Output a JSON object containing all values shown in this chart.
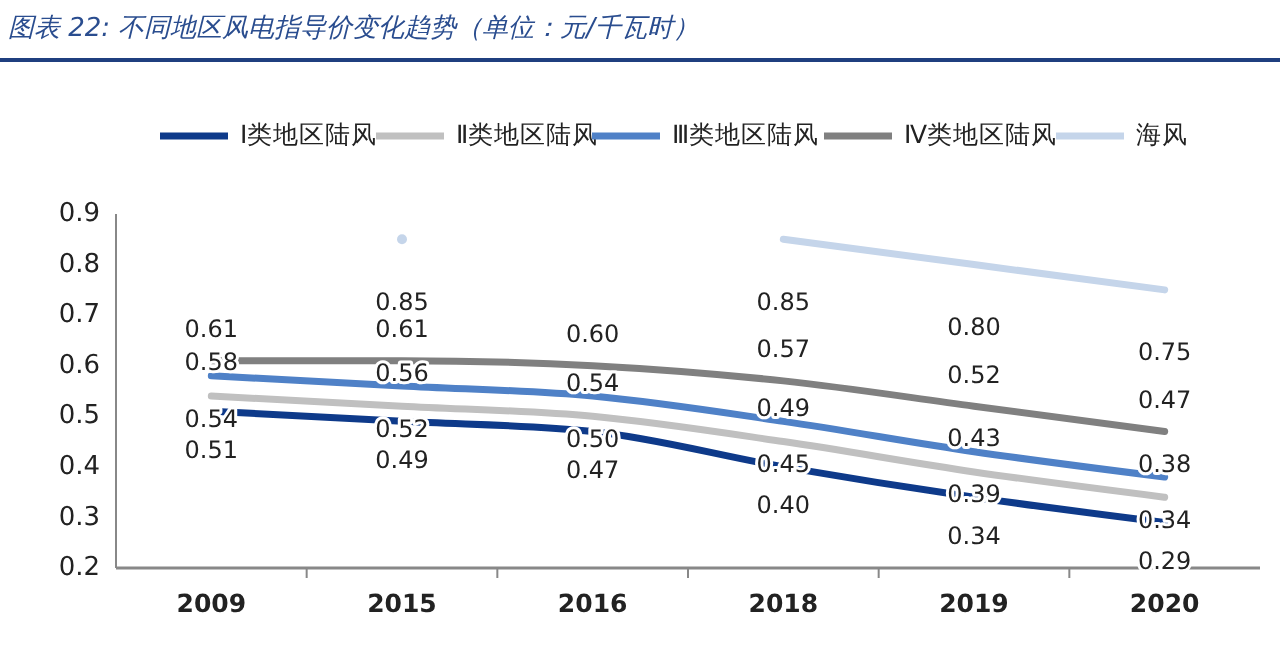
{
  "chart_data": {
    "type": "line",
    "title": "图表 22:  不同地区风电指导价变化趋势（单位：元/千瓦时）",
    "categories": [
      "2009",
      "2015",
      "2016",
      "2018",
      "2019",
      "2020"
    ],
    "series": [
      {
        "name": "Ⅰ类地区陆风",
        "color": "#0e3a8a",
        "values": [
          0.51,
          0.49,
          0.47,
          0.4,
          0.34,
          0.29
        ],
        "value_labels": [
          "0.51",
          "0.49",
          "0.47",
          "0.40",
          "0.34",
          "0.29"
        ]
      },
      {
        "name": "Ⅱ类地区陆风",
        "color": "#c0c0c0",
        "values": [
          0.54,
          0.52,
          0.5,
          0.45,
          0.39,
          0.34
        ],
        "value_labels": [
          "0.54",
          "0.52",
          "0.50",
          "0.45",
          "0.39",
          "0.34"
        ]
      },
      {
        "name": "Ⅲ类地区陆风",
        "color": "#4f81c7",
        "values": [
          0.58,
          0.56,
          0.54,
          0.49,
          0.43,
          0.38
        ],
        "value_labels": [
          "0.58",
          "0.56",
          "0.54",
          "0.49",
          "0.43",
          "0.38"
        ]
      },
      {
        "name": "Ⅳ类地区陆风",
        "color": "#808080",
        "values": [
          0.61,
          0.61,
          0.6,
          0.57,
          0.52,
          0.47
        ],
        "value_labels": [
          "0.61",
          "0.61",
          "0.60",
          "0.57",
          "0.52",
          "0.47"
        ]
      },
      {
        "name": "海风",
        "color": "#c5d5ea",
        "values": [
          null,
          0.85,
          null,
          0.85,
          0.8,
          0.75
        ],
        "value_labels": [
          null,
          "0.85",
          null,
          "0.85",
          "0.80",
          "0.75"
        ]
      }
    ],
    "ylim": [
      0.2,
      0.9
    ],
    "yticks": [
      0.2,
      0.3,
      0.4,
      0.5,
      0.6,
      0.7,
      0.8,
      0.9
    ],
    "grid": false,
    "legend": "top",
    "marker": "none",
    "line_style": "solid"
  }
}
